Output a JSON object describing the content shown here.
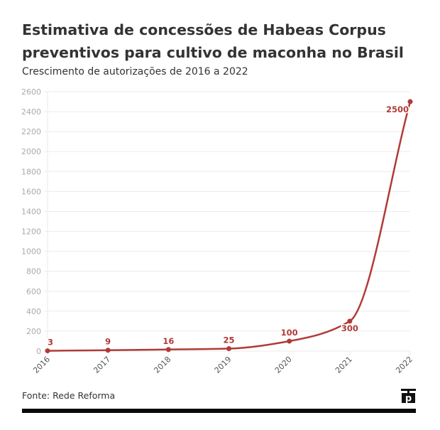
{
  "header": {
    "title": "Estimativa de concessões de Habeas Corpus preventivos para cultivo de maconha no Brasil",
    "subtitle": "Crescimento de autorizações de 2016 a 2022"
  },
  "footer": {
    "source": "Fonte: Rede Reforma",
    "logo_letter": "p",
    "logo_icon": "publisher-logo-icon"
  },
  "colors": {
    "line": "#b13a36",
    "grid": "#ebebeb",
    "tick": "#aaaaaa",
    "text": "#333333"
  },
  "chart_data": {
    "type": "line",
    "title": "Estimativa de concessões de Habeas Corpus preventivos para cultivo de maconha no Brasil",
    "subtitle": "Crescimento de autorizações de 2016 a 2022",
    "xlabel": "",
    "ylabel": "",
    "categories": [
      "2016",
      "2017",
      "2018",
      "2019",
      "2020",
      "2021",
      "2022"
    ],
    "series": [
      {
        "name": "Habeas Corpus preventivos",
        "values": [
          3,
          9,
          16,
          25,
          100,
          300,
          2500
        ]
      }
    ],
    "data_labels": [
      "3",
      "9",
      "16",
      "25",
      "100",
      "300",
      "2500"
    ],
    "ylim": [
      0,
      2600
    ],
    "yticks": [
      0,
      200,
      400,
      600,
      800,
      1000,
      1200,
      1400,
      1600,
      1800,
      2000,
      2200,
      2400,
      2600
    ],
    "ytick_labels": [
      "0",
      "200",
      "400",
      "600",
      "800",
      "1000",
      "1200",
      "1400",
      "1600",
      "1800",
      "2000",
      "2200",
      "2400",
      "2600"
    ],
    "grid": true,
    "legend": "none"
  }
}
